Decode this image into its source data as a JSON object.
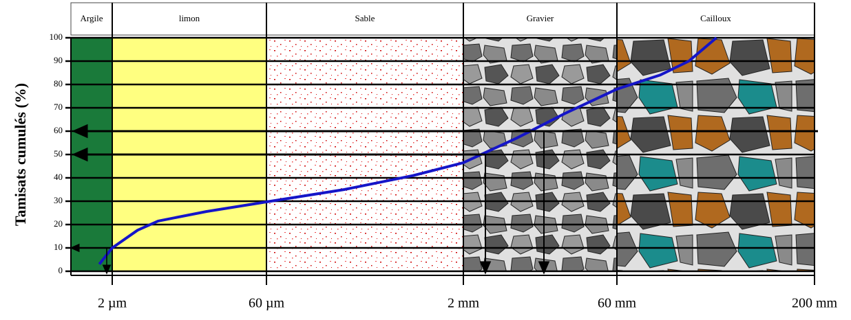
{
  "chart_data": {
    "type": "line",
    "ylabel": "Tamisats cumulés (%)",
    "ylim": [
      0,
      100
    ],
    "yticks": [
      0,
      10,
      20,
      30,
      40,
      50,
      60,
      70,
      80,
      90,
      100
    ],
    "xscale": "log",
    "xlim": [
      0.0008,
      200
    ],
    "xticks": [
      {
        "value": 0.002,
        "label": "2 µm"
      },
      {
        "value": 0.06,
        "label": "60 µm"
      },
      {
        "value": 2,
        "label": "2 mm"
      },
      {
        "value": 60,
        "label": "60 mm"
      },
      {
        "value": 200,
        "label": "200 mm"
      }
    ],
    "zones": [
      {
        "name": "Argile",
        "color": "#1a7a3a"
      },
      {
        "name": "limon",
        "color": "#ffff80"
      },
      {
        "name": "Sable",
        "color": "#ffffff"
      },
      {
        "name": "Gravier",
        "color": "#e0e0e0"
      },
      {
        "name": "Cailloux",
        "color": "#e0e0e0"
      }
    ],
    "grid": true,
    "curve": {
      "color": "#1515c8",
      "x": [
        0.0015,
        0.002,
        0.0035,
        0.0055,
        0.016,
        0.06,
        0.24,
        0.82,
        2,
        6.5,
        19,
        60,
        78,
        93,
        110
      ],
      "values": [
        3,
        10,
        17.6,
        21.5,
        25.6,
        29.7,
        35,
        41,
        46.5,
        57,
        67.6,
        78,
        84,
        90,
        100
      ]
    }
  }
}
